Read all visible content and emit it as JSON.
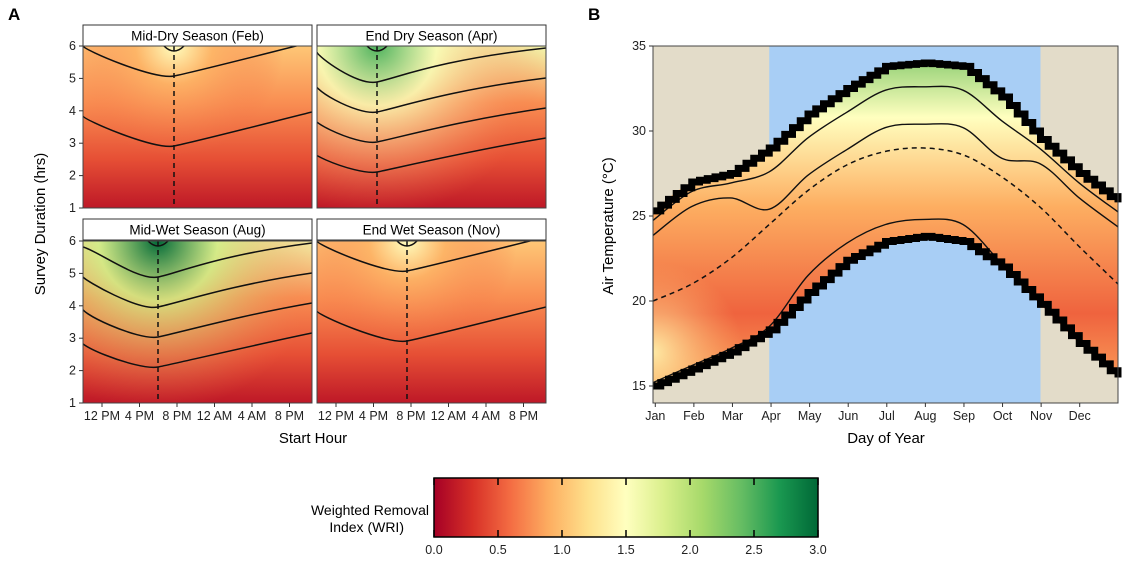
{
  "figure": {
    "panel_a_letter": "A",
    "panel_b_letter": "B"
  },
  "colors": {
    "scale": [
      "#a50026",
      "#d73027",
      "#f46d43",
      "#fdae61",
      "#fee08b",
      "#ffffbf",
      "#d9ef8b",
      "#a6d96a",
      "#66bd63",
      "#1a9850",
      "#006837"
    ],
    "season_wet_bg": "#a8cef5",
    "season_dry_bg": "#e3dcc9",
    "strip_fill": "#ffffff"
  },
  "chart_data": [
    {
      "type": "heatmap",
      "panel": "A",
      "xlabel": "Start Hour",
      "ylabel": "Survey Duration (hrs)",
      "x_ticks": [
        "12 PM",
        "4 PM",
        "8 PM",
        "12 AM",
        "4 AM",
        "8 PM"
      ],
      "y_ticks": [
        "1",
        "2",
        "3",
        "4",
        "5",
        "6"
      ],
      "ylim": [
        1,
        6
      ],
      "facets": [
        {
          "title": "Mid-Dry Season (Feb)",
          "optimal_start": "8 PM",
          "max_wri": 1.5
        },
        {
          "title": "End Dry Season (Apr)",
          "optimal_start": "5 PM",
          "max_wri": 2.5
        },
        {
          "title": "Mid-Wet Season (Aug)",
          "optimal_start": "6 PM",
          "max_wri": 3.0
        },
        {
          "title": "End Wet Season (Nov)",
          "optimal_start": "8 PM",
          "max_wri": 1.5
        }
      ]
    },
    {
      "type": "heatmap",
      "panel": "B",
      "xlabel": "Day of Year",
      "ylabel": "Air Temperature (°C)",
      "x_ticks": [
        "Jan",
        "Feb",
        "Mar",
        "Apr",
        "May",
        "Jun",
        "Jul",
        "Aug",
        "Sep",
        "Oct",
        "Nov",
        "Dec"
      ],
      "y_ticks": [
        "15",
        "20",
        "25",
        "30",
        "35"
      ],
      "ylim": [
        14,
        35
      ],
      "wet_season": [
        "Apr",
        "Nov"
      ],
      "upper_bound_c": [
        25.3,
        27.0,
        27.5,
        29.0,
        31.0,
        32.5,
        33.8,
        34.0,
        33.8,
        32.0,
        29.5,
        27.5,
        25.8
      ],
      "lower_bound_c": [
        15.0,
        16.0,
        17.0,
        18.3,
        20.5,
        22.4,
        23.5,
        23.8,
        23.5,
        22.0,
        19.8,
        17.5,
        15.5
      ],
      "dashed_optimum_c": [
        20.0,
        21.0,
        22.5,
        24.5,
        26.5,
        28.0,
        28.8,
        29.0,
        28.6,
        27.3,
        25.5,
        23.2,
        21.0
      ]
    },
    {
      "type": "colorbar",
      "title_lines": [
        "Weighted Removal",
        "Index (WRI)"
      ],
      "ticks": [
        "0.0",
        "0.5",
        "1.0",
        "1.5",
        "2.0",
        "2.5",
        "3.0"
      ],
      "range": [
        0,
        3
      ]
    }
  ]
}
